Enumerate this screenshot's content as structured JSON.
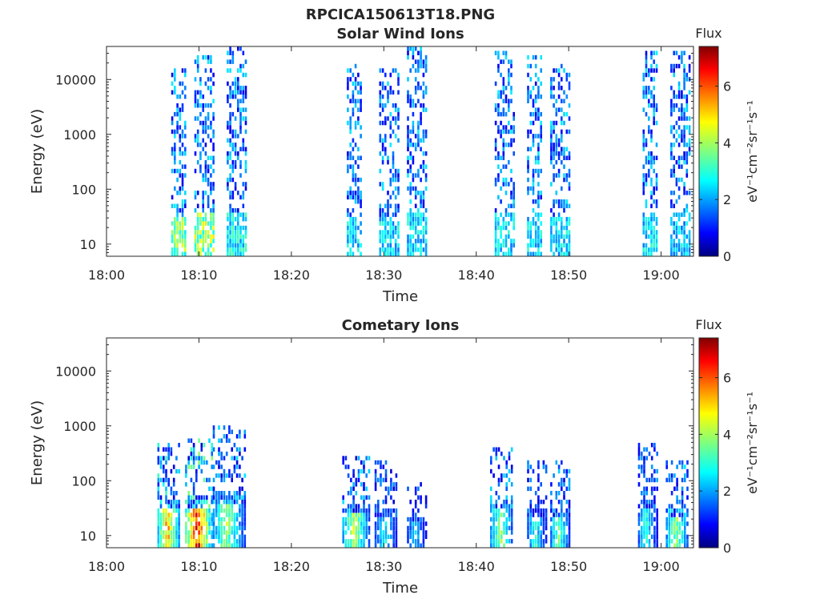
{
  "figure": {
    "title": "RPCICA150613T18.PNG"
  },
  "colorbar": {
    "label": "Flux",
    "unit_label": "eV⁻¹cm⁻²sr⁻¹s⁻¹",
    "range": [
      0,
      7.4
    ],
    "ticks": [
      0,
      2,
      4,
      6
    ],
    "colormap": "jet"
  },
  "chart_data": [
    {
      "type": "heatmap",
      "title": "Solar Wind Ions",
      "xlabel": "Time",
      "ylabel": "Energy (eV)",
      "x_ticks": [
        "18:00",
        "18:10",
        "18:20",
        "18:30",
        "18:40",
        "18:50",
        "19:00"
      ],
      "x_tick_minutes": [
        0,
        10,
        20,
        30,
        40,
        50,
        60
      ],
      "xlim_minutes": [
        0,
        63.5
      ],
      "y_scale": "log",
      "y_ticks": [
        10,
        100,
        1000,
        10000
      ],
      "ylim": [
        6,
        40000
      ],
      "grid": false,
      "bursts": [
        {
          "start_min": 7.0,
          "end_min": 8.5,
          "e_min": 6,
          "e_max": 15000,
          "peak_flux": 4.5
        },
        {
          "start_min": 9.5,
          "end_min": 11.5,
          "e_min": 6,
          "e_max": 25000,
          "peak_flux": 4.8
        },
        {
          "start_min": 13.0,
          "end_min": 15.0,
          "e_min": 6,
          "e_max": 35000,
          "peak_flux": 3.5
        },
        {
          "start_min": 26.0,
          "end_min": 27.5,
          "e_min": 6,
          "e_max": 18000,
          "peak_flux": 3.2
        },
        {
          "start_min": 29.5,
          "end_min": 31.5,
          "e_min": 6,
          "e_max": 15000,
          "peak_flux": 3.2
        },
        {
          "start_min": 32.5,
          "end_min": 34.5,
          "e_min": 6,
          "e_max": 35000,
          "peak_flux": 3.2
        },
        {
          "start_min": 42.0,
          "end_min": 44.0,
          "e_min": 6,
          "e_max": 30000,
          "peak_flux": 3.2
        },
        {
          "start_min": 45.5,
          "end_min": 47.0,
          "e_min": 6,
          "e_max": 25000,
          "peak_flux": 3.2
        },
        {
          "start_min": 48.0,
          "end_min": 50.0,
          "e_min": 6,
          "e_max": 18000,
          "peak_flux": 3.2
        },
        {
          "start_min": 58.0,
          "end_min": 59.5,
          "e_min": 6,
          "e_max": 30000,
          "peak_flux": 3.2
        },
        {
          "start_min": 61.0,
          "end_min": 63.0,
          "e_min": 6,
          "e_max": 30000,
          "peak_flux": 3.0
        }
      ]
    },
    {
      "type": "heatmap",
      "title": "Cometary Ions",
      "xlabel": "Time",
      "ylabel": "Energy (eV)",
      "x_ticks": [
        "18:00",
        "18:10",
        "18:20",
        "18:30",
        "18:40",
        "18:50",
        "19:00"
      ],
      "x_tick_minutes": [
        0,
        10,
        20,
        30,
        40,
        50,
        60
      ],
      "xlim_minutes": [
        0,
        63.5
      ],
      "y_scale": "log",
      "y_ticks": [
        10,
        100,
        1000,
        10000
      ],
      "ylim": [
        6,
        40000
      ],
      "grid": false,
      "bursts": [
        {
          "start_min": 5.5,
          "end_min": 8.0,
          "e_min": 6,
          "e_max": 450,
          "peak_flux": 6.0
        },
        {
          "start_min": 8.5,
          "end_min": 11.5,
          "e_min": 6,
          "e_max": 550,
          "peak_flux": 7.2
        },
        {
          "start_min": 11.5,
          "end_min": 15.0,
          "e_min": 6,
          "e_max": 1000,
          "peak_flux": 4.5
        },
        {
          "start_min": 25.5,
          "end_min": 28.5,
          "e_min": 6,
          "e_max": 250,
          "peak_flux": 4.8
        },
        {
          "start_min": 29.0,
          "end_min": 31.5,
          "e_min": 6,
          "e_max": 200,
          "peak_flux": 3.2
        },
        {
          "start_min": 32.5,
          "end_min": 34.5,
          "e_min": 6,
          "e_max": 90,
          "peak_flux": 3.0
        },
        {
          "start_min": 41.5,
          "end_min": 44.0,
          "e_min": 6,
          "e_max": 400,
          "peak_flux": 4.5
        },
        {
          "start_min": 45.5,
          "end_min": 47.5,
          "e_min": 6,
          "e_max": 200,
          "peak_flux": 3.5
        },
        {
          "start_min": 48.0,
          "end_min": 50.0,
          "e_min": 6,
          "e_max": 200,
          "peak_flux": 4.2
        },
        {
          "start_min": 57.5,
          "end_min": 59.5,
          "e_min": 6,
          "e_max": 450,
          "peak_flux": 3.5
        },
        {
          "start_min": 60.5,
          "end_min": 63.0,
          "e_min": 6,
          "e_max": 200,
          "peak_flux": 4.5
        }
      ]
    }
  ]
}
